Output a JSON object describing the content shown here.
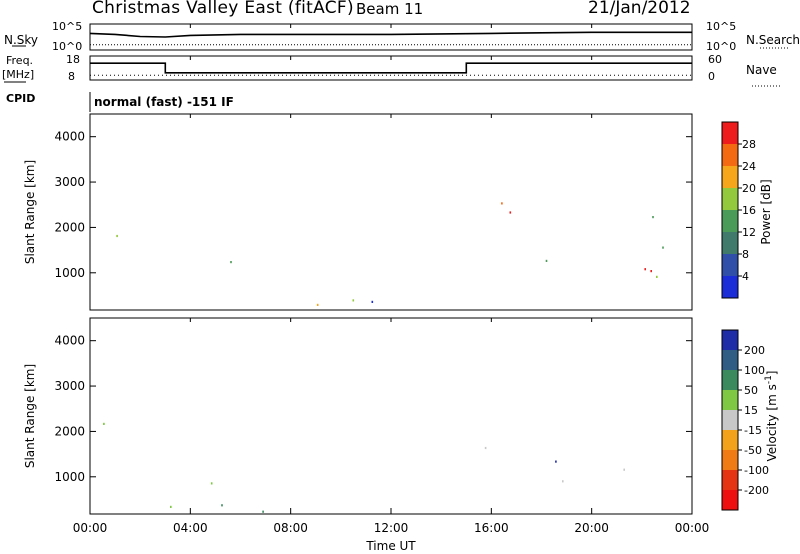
{
  "header": {
    "title": "Christmas Valley East (fitACF)",
    "beam": "Beam 11",
    "date": "21/Jan/2012"
  },
  "side_labels": {
    "nsky": "N.Sky",
    "nsky_ticks": [
      "10^5",
      "10^0"
    ],
    "nsearch": "N.Search",
    "nsearch_ticks": [
      "10^5",
      "10^0"
    ],
    "freq": "Freq.",
    "freq_unit": "[MHz]",
    "freq_ticks": [
      "18",
      "8"
    ],
    "nave": "Nave",
    "nave_ticks": [
      "60",
      "0"
    ],
    "cpid": "CPID",
    "mode": "normal (fast) -151 IF"
  },
  "colors": {
    "power_scale": [
      "#1a2dd6",
      "#2f4fa8",
      "#3f7a6a",
      "#4b9b58",
      "#93c93c",
      "#f5a61b",
      "#f36a12",
      "#ee1c1c"
    ],
    "velocity_scale": [
      "#1f2ca8",
      "#2f5d84",
      "#3a8a5e",
      "#7ec843",
      "#c8c8c8",
      "#f3a21c",
      "#f07a14",
      "#e43414",
      "#ee1010"
    ]
  },
  "chart_data": [
    {
      "type": "line",
      "title": "N.Sky / N.Search",
      "x_ticks": [
        "00:00",
        "04:00",
        "08:00",
        "12:00",
        "16:00",
        "20:00",
        "00:00"
      ],
      "series": [
        {
          "name": "N.Sky",
          "x": [
            0,
            1,
            2,
            3,
            4,
            6,
            8,
            10,
            12,
            14,
            16,
            18,
            20,
            22,
            24
          ],
          "values": [
            3.2,
            3.0,
            2.6,
            2.5,
            2.8,
            3.0,
            3.0,
            3.0,
            3.0,
            3.1,
            3.2,
            3.3,
            3.4,
            3.4,
            3.4
          ]
        },
        {
          "name": "N.Search",
          "x": [
            0,
            6,
            12,
            18,
            24
          ],
          "values": [
            1.0,
            1.0,
            1.0,
            1.0,
            1.0
          ]
        }
      ],
      "ylim": [
        0,
        5
      ]
    },
    {
      "type": "line",
      "title": "Freq. / Nave",
      "series": [
        {
          "name": "Freq.",
          "x": [
            0,
            3,
            3,
            15,
            15,
            24
          ],
          "values": [
            15,
            15,
            11,
            11,
            15,
            15
          ]
        },
        {
          "name": "Nave",
          "x": [
            0,
            6,
            12,
            18,
            24
          ],
          "values": [
            12,
            12,
            12,
            12,
            12
          ]
        }
      ],
      "ylim_freq": [
        8,
        18
      ],
      "ylim_nave": [
        0,
        60
      ]
    },
    {
      "type": "heatmap",
      "name": "power",
      "xlabel": "",
      "ylabel": "Slant Range [km]",
      "xlim": [
        0,
        24
      ],
      "ylim": [
        180,
        4500
      ],
      "y_ticks": [
        1000,
        2000,
        3000,
        4000
      ],
      "colorbar_label": "Power [dB]",
      "colorbar_ticks": [
        "4",
        "8",
        "12",
        "16",
        "20",
        "24",
        "28"
      ],
      "regions": [
        {
          "t0": 0.0,
          "t1": 1.6,
          "r0": 1500,
          "r1": 2600,
          "level": "mixed-high"
        },
        {
          "t0": 3.0,
          "t1": 5.6,
          "r0": 750,
          "r1": 1500,
          "level": "medium"
        },
        {
          "t0": 6.5,
          "t1": 7.8,
          "r0": 1550,
          "r1": 1800,
          "level": "low"
        },
        {
          "t0": 14.8,
          "t1": 24.0,
          "r0": 700,
          "r1": 2800,
          "level": "high-band"
        },
        {
          "t0": 0.0,
          "t1": 24.0,
          "r0": 180,
          "r1": 450,
          "level": "low-noise"
        }
      ]
    },
    {
      "type": "heatmap",
      "name": "velocity",
      "xlabel": "Time UT",
      "ylabel": "Slant Range [km]",
      "xlim": [
        0,
        24
      ],
      "ylim": [
        180,
        4500
      ],
      "y_ticks": [
        1000,
        2000,
        3000,
        4000
      ],
      "colorbar_label": "Velocity [m s^-1]",
      "colorbar_ticks": [
        "200",
        "100",
        "50",
        "15",
        "-15",
        "-50",
        "-100",
        "-200"
      ],
      "regions": [
        {
          "t0": 0.0,
          "t1": 1.7,
          "r0": 1600,
          "r1": 2700,
          "level": "near-zero"
        },
        {
          "t0": 3.0,
          "t1": 5.6,
          "r0": 800,
          "r1": 1500,
          "level": "positive-50"
        },
        {
          "t0": 14.9,
          "t1": 24.0,
          "r0": 900,
          "r1": 2000,
          "level": "near-zero"
        },
        {
          "t0": 0.0,
          "t1": 24.0,
          "r0": 180,
          "r1": 450,
          "level": "positive-15"
        }
      ]
    }
  ]
}
